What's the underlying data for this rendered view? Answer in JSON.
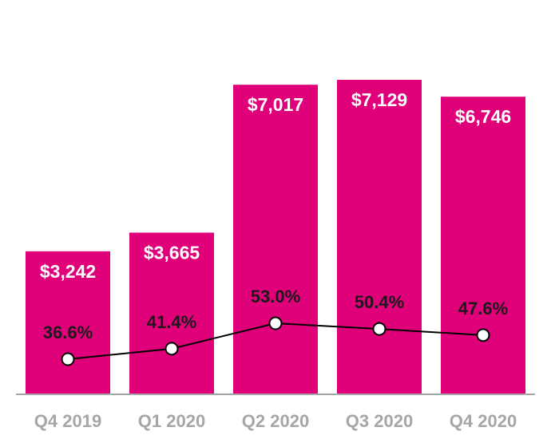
{
  "chart_data": {
    "type": "bar",
    "categories": [
      "Q4 2019",
      "Q1 2020",
      "Q2 2020",
      "Q3 2020",
      "Q4 2020"
    ],
    "series": [
      {
        "type": "bar",
        "values": [
          3242,
          3665,
          7017,
          7129,
          6746
        ],
        "labels": [
          "$3,242",
          "$3,665",
          "$7,017",
          "$7,129",
          "$6,746"
        ],
        "color": "#e0007a"
      },
      {
        "type": "line",
        "values": [
          36.6,
          41.4,
          53.0,
          50.4,
          47.6
        ],
        "labels": [
          "36.6%",
          "41.4%",
          "53.0%",
          "50.4%",
          "47.6%"
        ],
        "color": "#000000"
      }
    ],
    "bar_ylim": [
      0,
      7400
    ],
    "line_ylim": [
      0,
      100
    ],
    "title": "",
    "xlabel": "",
    "ylabel": "",
    "grid": false,
    "axis_color": "#a6a6a6",
    "tick_color": "#a6a6a6"
  }
}
